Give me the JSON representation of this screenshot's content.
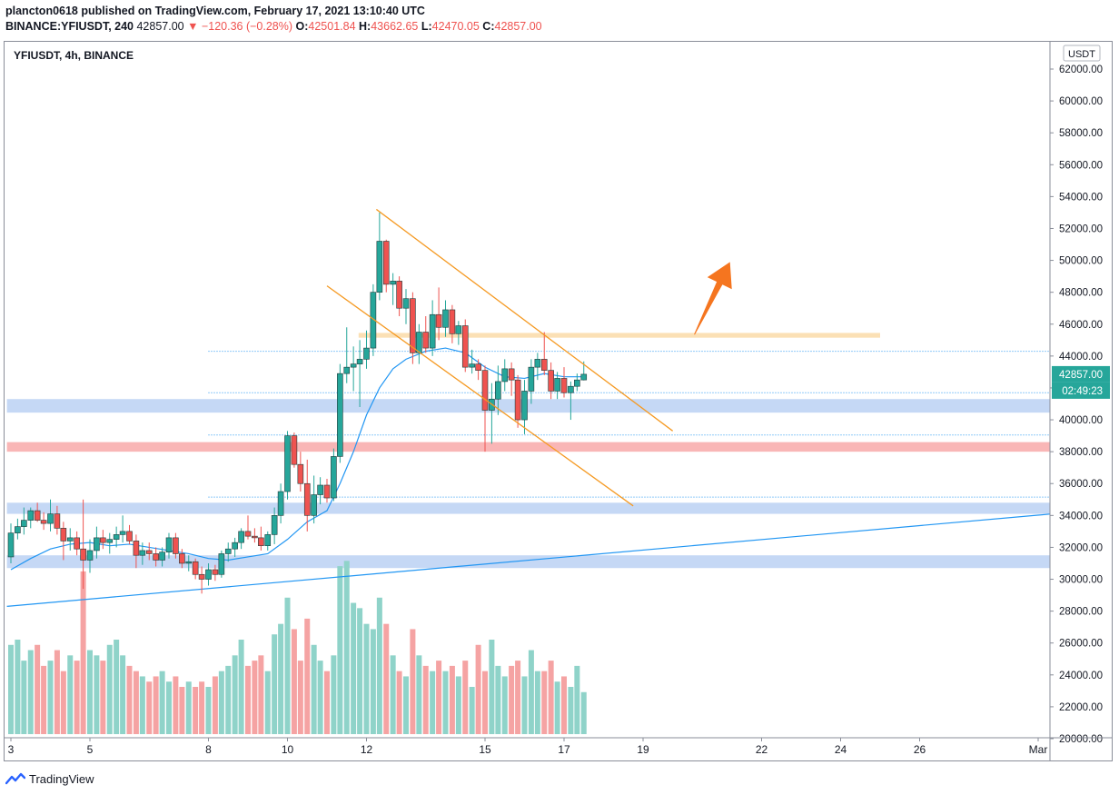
{
  "header": {
    "published_line": "plancton0618 published on TradingView.com, February 17, 2021 13:10:40 UTC",
    "symbol": "BINANCE:YFIUSDT, 240",
    "last_price": "42857.00",
    "change": "▼ −120.36 (−0.28%)",
    "o_label": "O:",
    "o_value": "42501.84",
    "h_label": "H:",
    "h_value": "43662.65",
    "l_label": "L:",
    "l_value": "42470.05",
    "c_label": "C:",
    "c_value": "42857.00"
  },
  "footer": {
    "brand": "TradingView"
  },
  "colors": {
    "up": "#26a69a",
    "down": "#ef5350",
    "vol_up": "#8fd3c9",
    "vol_down": "#f5a3a3",
    "ma": "#2196f3",
    "channel": "#f59a23",
    "arrow": "#f5751f",
    "support_zone": "#c5d8f5",
    "resistance_zone": "#f9b6b6",
    "breakout_zone": "#fbe0b5"
  },
  "chart_data": {
    "type": "candlestick",
    "title": "YFIUSDT, 4h, BINANCE",
    "currency": "USDT",
    "last_price_label": "42857.00",
    "countdown_label": "02:49:23",
    "y_ticks": [
      "62000.00",
      "60000.00",
      "58000.00",
      "56000.00",
      "54000.00",
      "52000.00",
      "50000.00",
      "48000.00",
      "46000.00",
      "44000.00",
      "42000.00",
      "40000.00",
      "38000.00",
      "36000.00",
      "34000.00",
      "32000.00",
      "30000.00",
      "28000.00",
      "26000.00",
      "24000.00",
      "22000.00",
      "20000.00"
    ],
    "ylim": [
      18200,
      63800
    ],
    "x_ticks": [
      {
        "label": "3",
        "day": 3
      },
      {
        "label": "5",
        "day": 5
      },
      {
        "label": "8",
        "day": 8
      },
      {
        "label": "10",
        "day": 10
      },
      {
        "label": "12",
        "day": 12
      },
      {
        "label": "15",
        "day": 15
      },
      {
        "label": "17",
        "day": 17
      },
      {
        "label": "19",
        "day": 19
      },
      {
        "label": "22",
        "day": 22
      },
      {
        "label": "24",
        "day": 24
      },
      {
        "label": "26",
        "day": 26
      },
      {
        "label": "Mar",
        "day": 29
      }
    ],
    "xlim": [
      2.9,
      30.5
    ],
    "candles": [
      {
        "x": 3.0,
        "o": 31400,
        "h": 33500,
        "l": 31000,
        "c": 32900
      },
      {
        "x": 3.17,
        "o": 32900,
        "h": 33800,
        "l": 32500,
        "c": 33300
      },
      {
        "x": 3.33,
        "o": 33300,
        "h": 34500,
        "l": 32800,
        "c": 33700
      },
      {
        "x": 3.5,
        "o": 33700,
        "h": 34500,
        "l": 33200,
        "c": 34300
      },
      {
        "x": 3.67,
        "o": 34300,
        "h": 34800,
        "l": 33600,
        "c": 33700
      },
      {
        "x": 3.83,
        "o": 33700,
        "h": 34200,
        "l": 33100,
        "c": 33500
      },
      {
        "x": 4.0,
        "o": 33500,
        "h": 35000,
        "l": 33000,
        "c": 34100
      },
      {
        "x": 4.17,
        "o": 34100,
        "h": 34600,
        "l": 32800,
        "c": 33200
      },
      {
        "x": 4.33,
        "o": 33200,
        "h": 33600,
        "l": 31200,
        "c": 32400
      },
      {
        "x": 4.5,
        "o": 32400,
        "h": 33200,
        "l": 31800,
        "c": 32600
      },
      {
        "x": 4.67,
        "o": 32600,
        "h": 33000,
        "l": 31500,
        "c": 31900
      },
      {
        "x": 4.83,
        "o": 31900,
        "h": 35000,
        "l": 29400,
        "c": 31200
      },
      {
        "x": 5.0,
        "o": 31200,
        "h": 32500,
        "l": 30400,
        "c": 31800
      },
      {
        "x": 5.17,
        "o": 31800,
        "h": 33300,
        "l": 31300,
        "c": 32600
      },
      {
        "x": 5.33,
        "o": 32600,
        "h": 33100,
        "l": 31900,
        "c": 32300
      },
      {
        "x": 5.5,
        "o": 32300,
        "h": 32900,
        "l": 31600,
        "c": 32500
      },
      {
        "x": 5.67,
        "o": 32500,
        "h": 33300,
        "l": 32000,
        "c": 32800
      },
      {
        "x": 5.83,
        "o": 32800,
        "h": 34000,
        "l": 32300,
        "c": 33000
      },
      {
        "x": 6.0,
        "o": 33000,
        "h": 33400,
        "l": 32200,
        "c": 32400
      },
      {
        "x": 6.17,
        "o": 32400,
        "h": 32800,
        "l": 30700,
        "c": 31500
      },
      {
        "x": 6.33,
        "o": 31500,
        "h": 32300,
        "l": 30900,
        "c": 31800
      },
      {
        "x": 6.5,
        "o": 31800,
        "h": 32300,
        "l": 31200,
        "c": 31600
      },
      {
        "x": 6.67,
        "o": 31600,
        "h": 32000,
        "l": 30800,
        "c": 31200
      },
      {
        "x": 6.83,
        "o": 31200,
        "h": 32000,
        "l": 30800,
        "c": 31700
      },
      {
        "x": 7.0,
        "o": 31700,
        "h": 32900,
        "l": 31300,
        "c": 32600
      },
      {
        "x": 7.17,
        "o": 32600,
        "h": 32900,
        "l": 31300,
        "c": 31600
      },
      {
        "x": 7.33,
        "o": 31600,
        "h": 31900,
        "l": 30700,
        "c": 31000
      },
      {
        "x": 7.5,
        "o": 31000,
        "h": 31500,
        "l": 30500,
        "c": 31100
      },
      {
        "x": 7.67,
        "o": 31100,
        "h": 31300,
        "l": 30000,
        "c": 30300
      },
      {
        "x": 7.83,
        "o": 30300,
        "h": 30800,
        "l": 29100,
        "c": 30000
      },
      {
        "x": 8.0,
        "o": 30000,
        "h": 31000,
        "l": 29600,
        "c": 30600
      },
      {
        "x": 8.17,
        "o": 30600,
        "h": 30900,
        "l": 29900,
        "c": 30300
      },
      {
        "x": 8.33,
        "o": 30300,
        "h": 31800,
        "l": 30100,
        "c": 31600
      },
      {
        "x": 8.5,
        "o": 31600,
        "h": 32300,
        "l": 31100,
        "c": 31900
      },
      {
        "x": 8.67,
        "o": 31900,
        "h": 32600,
        "l": 31400,
        "c": 32300
      },
      {
        "x": 8.83,
        "o": 32300,
        "h": 33200,
        "l": 31900,
        "c": 33000
      },
      {
        "x": 9.0,
        "o": 33000,
        "h": 34000,
        "l": 32500,
        "c": 32700
      },
      {
        "x": 9.17,
        "o": 32700,
        "h": 33200,
        "l": 32300,
        "c": 32600
      },
      {
        "x": 9.33,
        "o": 32600,
        "h": 33300,
        "l": 31800,
        "c": 32100
      },
      {
        "x": 9.5,
        "o": 32100,
        "h": 33000,
        "l": 31800,
        "c": 32800
      },
      {
        "x": 9.67,
        "o": 32800,
        "h": 34500,
        "l": 32200,
        "c": 34000
      },
      {
        "x": 9.83,
        "o": 34000,
        "h": 36000,
        "l": 33500,
        "c": 35500
      },
      {
        "x": 10.0,
        "o": 35500,
        "h": 39300,
        "l": 35000,
        "c": 39000
      },
      {
        "x": 10.17,
        "o": 39000,
        "h": 39200,
        "l": 37000,
        "c": 37200
      },
      {
        "x": 10.33,
        "o": 37200,
        "h": 38000,
        "l": 35500,
        "c": 36000
      },
      {
        "x": 10.5,
        "o": 36000,
        "h": 37500,
        "l": 33000,
        "c": 34000
      },
      {
        "x": 10.67,
        "o": 34000,
        "h": 36500,
        "l": 33500,
        "c": 35300
      },
      {
        "x": 10.83,
        "o": 35300,
        "h": 36400,
        "l": 34700,
        "c": 35900
      },
      {
        "x": 11.0,
        "o": 35900,
        "h": 36300,
        "l": 34800,
        "c": 35100
      },
      {
        "x": 11.17,
        "o": 35100,
        "h": 38200,
        "l": 34900,
        "c": 37700
      },
      {
        "x": 11.33,
        "o": 37700,
        "h": 43500,
        "l": 37300,
        "c": 42900
      },
      {
        "x": 11.5,
        "o": 42900,
        "h": 45800,
        "l": 42300,
        "c": 43300
      },
      {
        "x": 11.67,
        "o": 43300,
        "h": 44600,
        "l": 41800,
        "c": 43500
      },
      {
        "x": 11.83,
        "o": 43500,
        "h": 45000,
        "l": 40800,
        "c": 43800
      },
      {
        "x": 12.0,
        "o": 43800,
        "h": 45600,
        "l": 43200,
        "c": 44500
      },
      {
        "x": 12.17,
        "o": 44500,
        "h": 48500,
        "l": 44000,
        "c": 48000
      },
      {
        "x": 12.33,
        "o": 48000,
        "h": 53000,
        "l": 47500,
        "c": 51200
      },
      {
        "x": 12.5,
        "o": 51200,
        "h": 51300,
        "l": 48000,
        "c": 48500
      },
      {
        "x": 12.67,
        "o": 48500,
        "h": 49200,
        "l": 47200,
        "c": 48700
      },
      {
        "x": 12.83,
        "o": 48700,
        "h": 49000,
        "l": 46500,
        "c": 47000
      },
      {
        "x": 13.0,
        "o": 47000,
        "h": 48200,
        "l": 46000,
        "c": 47600
      },
      {
        "x": 13.17,
        "o": 47600,
        "h": 48000,
        "l": 43500,
        "c": 44200
      },
      {
        "x": 13.33,
        "o": 44200,
        "h": 46000,
        "l": 43500,
        "c": 45500
      },
      {
        "x": 13.5,
        "o": 45500,
        "h": 46500,
        "l": 44200,
        "c": 44500
      },
      {
        "x": 13.67,
        "o": 44500,
        "h": 47500,
        "l": 44000,
        "c": 46600
      },
      {
        "x": 13.83,
        "o": 46600,
        "h": 48300,
        "l": 45000,
        "c": 45800
      },
      {
        "x": 14.0,
        "o": 45800,
        "h": 47500,
        "l": 45200,
        "c": 46900
      },
      {
        "x": 14.17,
        "o": 46900,
        "h": 47200,
        "l": 44800,
        "c": 45400
      },
      {
        "x": 14.33,
        "o": 45400,
        "h": 46200,
        "l": 44700,
        "c": 45900
      },
      {
        "x": 14.5,
        "o": 45900,
        "h": 46300,
        "l": 43000,
        "c": 43300
      },
      {
        "x": 14.67,
        "o": 43300,
        "h": 44400,
        "l": 42900,
        "c": 43500
      },
      {
        "x": 14.83,
        "o": 43500,
        "h": 43800,
        "l": 42500,
        "c": 43100
      },
      {
        "x": 15.0,
        "o": 43100,
        "h": 43400,
        "l": 38000,
        "c": 40600
      },
      {
        "x": 15.17,
        "o": 40600,
        "h": 42300,
        "l": 38500,
        "c": 41300
      },
      {
        "x": 15.33,
        "o": 41300,
        "h": 43400,
        "l": 40300,
        "c": 42400
      },
      {
        "x": 15.5,
        "o": 42400,
        "h": 43800,
        "l": 41800,
        "c": 43200
      },
      {
        "x": 15.67,
        "o": 43200,
        "h": 43600,
        "l": 41500,
        "c": 42500
      },
      {
        "x": 15.83,
        "o": 42500,
        "h": 42800,
        "l": 39500,
        "c": 40000
      },
      {
        "x": 16.0,
        "o": 40000,
        "h": 42500,
        "l": 39100,
        "c": 41800
      },
      {
        "x": 16.17,
        "o": 41800,
        "h": 43800,
        "l": 41000,
        "c": 43300
      },
      {
        "x": 16.33,
        "o": 43300,
        "h": 44200,
        "l": 42500,
        "c": 43800
      },
      {
        "x": 16.5,
        "o": 43800,
        "h": 45500,
        "l": 42800,
        "c": 43100
      },
      {
        "x": 16.67,
        "o": 43100,
        "h": 43600,
        "l": 41300,
        "c": 41800
      },
      {
        "x": 16.83,
        "o": 41800,
        "h": 43000,
        "l": 41300,
        "c": 42600
      },
      {
        "x": 17.0,
        "o": 42600,
        "h": 43300,
        "l": 41400,
        "c": 41700
      },
      {
        "x": 17.17,
        "o": 41700,
        "h": 42400,
        "l": 40000,
        "c": 42100
      },
      {
        "x": 17.33,
        "o": 42100,
        "h": 42900,
        "l": 41800,
        "c": 42500
      },
      {
        "x": 17.5,
        "o": 42501.84,
        "h": 43662.65,
        "l": 42470.05,
        "c": 42857
      }
    ],
    "volume": [
      17,
      18,
      14,
      16,
      17,
      13,
      14,
      16,
      12,
      15,
      14,
      31,
      16,
      15,
      14,
      17,
      18,
      15,
      13,
      12,
      11,
      10,
      11,
      12,
      10,
      11,
      9,
      10,
      9,
      10,
      9,
      11,
      12,
      13,
      15,
      18,
      13,
      14,
      15,
      12,
      19,
      21,
      26,
      20,
      14,
      22,
      17,
      14,
      12,
      15,
      32,
      33,
      25,
      24,
      21,
      20,
      26,
      21,
      15,
      12,
      11,
      20,
      15,
      13,
      12,
      14,
      12,
      13,
      11,
      14,
      9,
      17,
      12,
      18,
      13,
      11,
      13,
      14,
      11,
      16,
      12,
      12,
      14,
      10,
      11,
      9,
      13,
      8
    ],
    "volume_ticks": {
      "ylim": [
        0,
        36
      ]
    },
    "ma": [
      [
        3.0,
        30600
      ],
      [
        3.5,
        31300
      ],
      [
        4.0,
        31900
      ],
      [
        4.5,
        32200
      ],
      [
        5.0,
        32300
      ],
      [
        5.5,
        32100
      ],
      [
        6.0,
        32200
      ],
      [
        6.5,
        32000
      ],
      [
        7.0,
        31800
      ],
      [
        7.5,
        31600
      ],
      [
        8.0,
        31300
      ],
      [
        8.5,
        31200
      ],
      [
        9.0,
        31400
      ],
      [
        9.5,
        31600
      ],
      [
        10.0,
        32500
      ],
      [
        10.5,
        33600
      ],
      [
        11.0,
        34300
      ],
      [
        11.33,
        36000
      ],
      [
        11.67,
        38000
      ],
      [
        12.0,
        40300
      ],
      [
        12.33,
        42000
      ],
      [
        12.67,
        43200
      ],
      [
        13.0,
        43800
      ],
      [
        13.5,
        44300
      ],
      [
        14.0,
        44500
      ],
      [
        14.5,
        44200
      ],
      [
        15.0,
        43300
      ],
      [
        15.5,
        42700
      ],
      [
        16.0,
        42600
      ],
      [
        16.5,
        42900
      ],
      [
        17.0,
        42700
      ],
      [
        17.5,
        42700
      ]
    ],
    "trendline": {
      "from": [
        2.9,
        28300
      ],
      "to": [
        30.5,
        34350
      ]
    },
    "channel_upper": {
      "from": [
        12.25,
        53200
      ],
      "to": [
        19.75,
        39300
      ]
    },
    "channel_lower": {
      "from": [
        11.0,
        48400
      ],
      "to": [
        18.75,
        34600
      ]
    },
    "zones": [
      {
        "type": "support",
        "y1": 40450,
        "y2": 41300,
        "x1": 2.9,
        "x2": 30.5
      },
      {
        "type": "resistance",
        "y1": 38000,
        "y2": 38600,
        "x1": 2.9,
        "x2": 30.5
      },
      {
        "type": "support",
        "y1": 34100,
        "y2": 34800,
        "x1": 2.9,
        "x2": 30.5
      },
      {
        "type": "support",
        "y1": 30700,
        "y2": 31500,
        "x1": 2.9,
        "x2": 30.5
      },
      {
        "type": "breakout",
        "y1": 45150,
        "y2": 45450,
        "x1": 11.8,
        "x2": 25.0
      }
    ],
    "dotted_levels": [
      {
        "y": 44300,
        "x1": 8.0,
        "x2": 30.5
      },
      {
        "y": 41700,
        "x1": 8.0,
        "x2": 30.5
      },
      {
        "y": 39050,
        "x1": 8.0,
        "x2": 30.5
      },
      {
        "y": 35150,
        "x1": 8.0,
        "x2": 30.5
      }
    ],
    "arrow": {
      "from": [
        20.3,
        45350
      ],
      "to": [
        21.2,
        49900
      ]
    }
  }
}
